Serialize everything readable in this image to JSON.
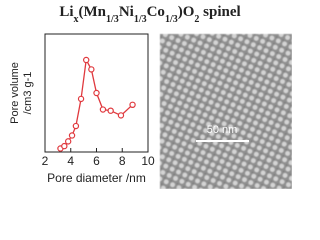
{
  "chart_data": {
    "type": "line",
    "title": [
      "Li",
      "x",
      "(Mn",
      "1/3",
      "Ni",
      "1/3",
      "Co",
      "1/3",
      ")O",
      "2",
      " spinel"
    ],
    "x_label": "Pore diameter /nm",
    "y_label": [
      "Pore volume",
      "/cm3 g-1"
    ],
    "x": [
      3.2,
      3.5,
      3.8,
      4.1,
      4.4,
      4.8,
      5.2,
      5.6,
      6.0,
      6.5,
      7.1,
      7.9,
      8.8
    ],
    "series": [
      {
        "name": "pore volume",
        "color": "#e0393e",
        "values": [
          0.03,
          0.05,
          0.09,
          0.14,
          0.22,
          0.45,
          0.78,
          0.7,
          0.5,
          0.36,
          0.35,
          0.31,
          0.4
        ]
      }
    ],
    "xlim": [
      2,
      10
    ],
    "xticks": [
      2,
      4,
      6,
      8,
      10
    ],
    "ylim": [
      0,
      1
    ]
  },
  "image": {
    "scale_bar": "50 nm"
  }
}
